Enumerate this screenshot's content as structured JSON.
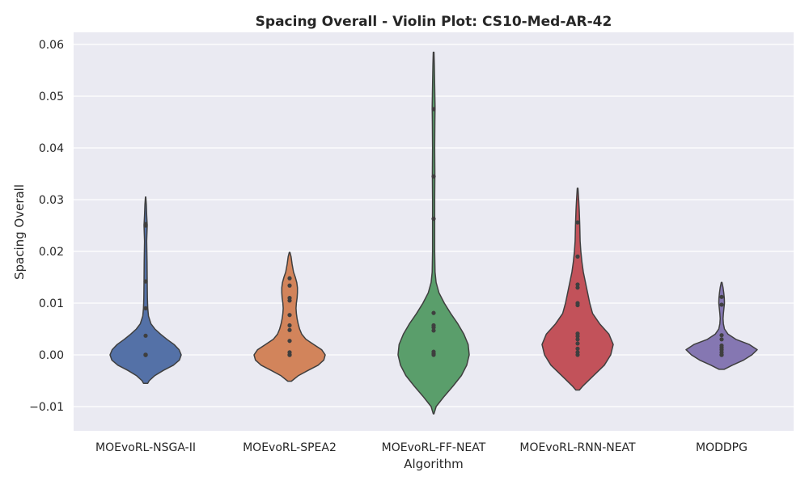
{
  "chart_data": {
    "type": "violin",
    "title": "Spacing Overall - Violin Plot: CS10-Med-AR-42",
    "xlabel": "Algorithm",
    "ylabel": "Spacing Overall",
    "ylim": [
      -0.0145,
      0.0625
    ],
    "yticks": [
      -0.01,
      0.0,
      0.01,
      0.02,
      0.03,
      0.04,
      0.05,
      0.06
    ],
    "ytick_labels": [
      "−0.01",
      "0.00",
      "0.01",
      "0.02",
      "0.03",
      "0.04",
      "0.05",
      "0.06"
    ],
    "grid": true,
    "background": "#eaeaf2",
    "categories": [
      "MOEvoRL-NSGA-II",
      "MOEvoRL-SPEA2",
      "MOEvoRL-FF-NEAT",
      "MOEvoRL-RNN-NEAT",
      "MODDPG"
    ],
    "series": [
      {
        "category": "MOEvoRL-NSGA-II",
        "color": "#5471a7",
        "range": [
          -0.0055,
          0.0305
        ],
        "quartiles": [
          0.0,
          0.0,
          0.0026
        ],
        "points": [
          0.0,
          0.0,
          0.0,
          0.0,
          0.0,
          0.0,
          0.0,
          0.0,
          0.0037,
          0.009,
          0.0142,
          0.025,
          0.0253
        ],
        "density": [
          [
            -0.0055,
            0.06
          ],
          [
            -0.005,
            0.1
          ],
          [
            -0.004,
            0.26
          ],
          [
            -0.003,
            0.5
          ],
          [
            -0.002,
            0.78
          ],
          [
            -0.001,
            0.95
          ],
          [
            0.0,
            1.0
          ],
          [
            0.001,
            0.94
          ],
          [
            0.002,
            0.8
          ],
          [
            0.003,
            0.6
          ],
          [
            0.004,
            0.42
          ],
          [
            0.005,
            0.26
          ],
          [
            0.006,
            0.15
          ],
          [
            0.0075,
            0.08
          ],
          [
            0.009,
            0.06
          ],
          [
            0.011,
            0.05
          ],
          [
            0.014,
            0.045
          ],
          [
            0.018,
            0.04
          ],
          [
            0.022,
            0.03
          ],
          [
            0.025,
            0.045
          ],
          [
            0.027,
            0.03
          ],
          [
            0.029,
            0.02
          ],
          [
            0.0305,
            0.005
          ]
        ]
      },
      {
        "category": "MOEvoRL-SPEA2",
        "color": "#d2845b",
        "range": [
          -0.0051,
          0.0198
        ],
        "quartiles": [
          0.0,
          0.0009,
          0.0075
        ],
        "points": [
          0.0,
          0.0,
          0.0,
          0.0,
          0.0005,
          0.0027,
          0.0048,
          0.0057,
          0.0077,
          0.0105,
          0.011,
          0.0134,
          0.0148
        ],
        "density": [
          [
            -0.0051,
            0.05
          ],
          [
            -0.004,
            0.25
          ],
          [
            -0.003,
            0.52
          ],
          [
            -0.002,
            0.8
          ],
          [
            -0.001,
            0.96
          ],
          [
            0.0,
            1.0
          ],
          [
            0.001,
            0.9
          ],
          [
            0.002,
            0.68
          ],
          [
            0.003,
            0.46
          ],
          [
            0.004,
            0.34
          ],
          [
            0.005,
            0.28
          ],
          [
            0.006,
            0.24
          ],
          [
            0.007,
            0.21
          ],
          [
            0.008,
            0.19
          ],
          [
            0.009,
            0.18
          ],
          [
            0.01,
            0.19
          ],
          [
            0.011,
            0.21
          ],
          [
            0.012,
            0.22
          ],
          [
            0.013,
            0.22
          ],
          [
            0.014,
            0.2
          ],
          [
            0.015,
            0.16
          ],
          [
            0.016,
            0.11
          ],
          [
            0.0175,
            0.07
          ],
          [
            0.019,
            0.04
          ],
          [
            0.0198,
            0.01
          ]
        ]
      },
      {
        "category": "MOEvoRL-FF-NEAT",
        "color": "#5a9e6b",
        "range": [
          -0.0114,
          0.0585
        ],
        "quartiles": [
          0.0003,
          0.0048,
          0.0055
        ],
        "points": [
          0.0,
          0.0002,
          0.0006,
          0.0047,
          0.0053,
          0.0057,
          0.0081,
          0.0263,
          0.0345,
          0.0475
        ],
        "density": [
          [
            -0.0114,
            0.01
          ],
          [
            -0.01,
            0.07
          ],
          [
            -0.008,
            0.3
          ],
          [
            -0.006,
            0.55
          ],
          [
            -0.004,
            0.78
          ],
          [
            -0.002,
            0.93
          ],
          [
            0.0,
            1.0
          ],
          [
            0.002,
            0.97
          ],
          [
            0.004,
            0.85
          ],
          [
            0.006,
            0.68
          ],
          [
            0.008,
            0.48
          ],
          [
            0.01,
            0.3
          ],
          [
            0.012,
            0.15
          ],
          [
            0.014,
            0.07
          ],
          [
            0.016,
            0.04
          ],
          [
            0.02,
            0.03
          ],
          [
            0.025,
            0.03
          ],
          [
            0.03,
            0.03
          ],
          [
            0.035,
            0.035
          ],
          [
            0.04,
            0.03
          ],
          [
            0.045,
            0.035
          ],
          [
            0.048,
            0.04
          ],
          [
            0.052,
            0.03
          ],
          [
            0.056,
            0.02
          ],
          [
            0.0585,
            0.01
          ]
        ]
      },
      {
        "category": "MOEvoRL-RNN-NEAT",
        "color": "#c2525a",
        "range": [
          -0.0068,
          0.0322
        ],
        "quartiles": [
          0.0008,
          0.0035,
          0.0098
        ],
        "points": [
          0.0,
          0.0005,
          0.0012,
          0.0022,
          0.003,
          0.0036,
          0.0041,
          0.0096,
          0.01,
          0.013,
          0.0136,
          0.019,
          0.0256
        ],
        "density": [
          [
            -0.0068,
            0.05
          ],
          [
            -0.006,
            0.15
          ],
          [
            -0.004,
            0.45
          ],
          [
            -0.002,
            0.75
          ],
          [
            0.0,
            0.93
          ],
          [
            0.002,
            1.0
          ],
          [
            0.004,
            0.88
          ],
          [
            0.006,
            0.62
          ],
          [
            0.008,
            0.42
          ],
          [
            0.01,
            0.34
          ],
          [
            0.012,
            0.28
          ],
          [
            0.014,
            0.22
          ],
          [
            0.016,
            0.16
          ],
          [
            0.018,
            0.12
          ],
          [
            0.02,
            0.09
          ],
          [
            0.022,
            0.07
          ],
          [
            0.025,
            0.06
          ],
          [
            0.028,
            0.045
          ],
          [
            0.03,
            0.03
          ],
          [
            0.0322,
            0.01
          ]
        ]
      },
      {
        "category": "MODDPG",
        "color": "#8577b2",
        "range": [
          -0.0028,
          0.014
        ],
        "quartiles": [
          0.0,
          0.0012,
          0.0025
        ],
        "points": [
          0.0,
          0.0,
          0.0,
          0.0005,
          0.001,
          0.0014,
          0.0018,
          0.003,
          0.0038,
          0.0097,
          0.0112
        ],
        "density": [
          [
            -0.0028,
            0.07
          ],
          [
            -0.002,
            0.3
          ],
          [
            -0.001,
            0.62
          ],
          [
            0.0,
            0.85
          ],
          [
            0.001,
            1.0
          ],
          [
            0.002,
            0.78
          ],
          [
            0.003,
            0.4
          ],
          [
            0.004,
            0.18
          ],
          [
            0.005,
            0.08
          ],
          [
            0.006,
            0.05
          ],
          [
            0.007,
            0.04
          ],
          [
            0.008,
            0.05
          ],
          [
            0.009,
            0.065
          ],
          [
            0.01,
            0.08
          ],
          [
            0.011,
            0.075
          ],
          [
            0.012,
            0.06
          ],
          [
            0.013,
            0.04
          ],
          [
            0.014,
            0.01
          ]
        ]
      }
    ]
  }
}
